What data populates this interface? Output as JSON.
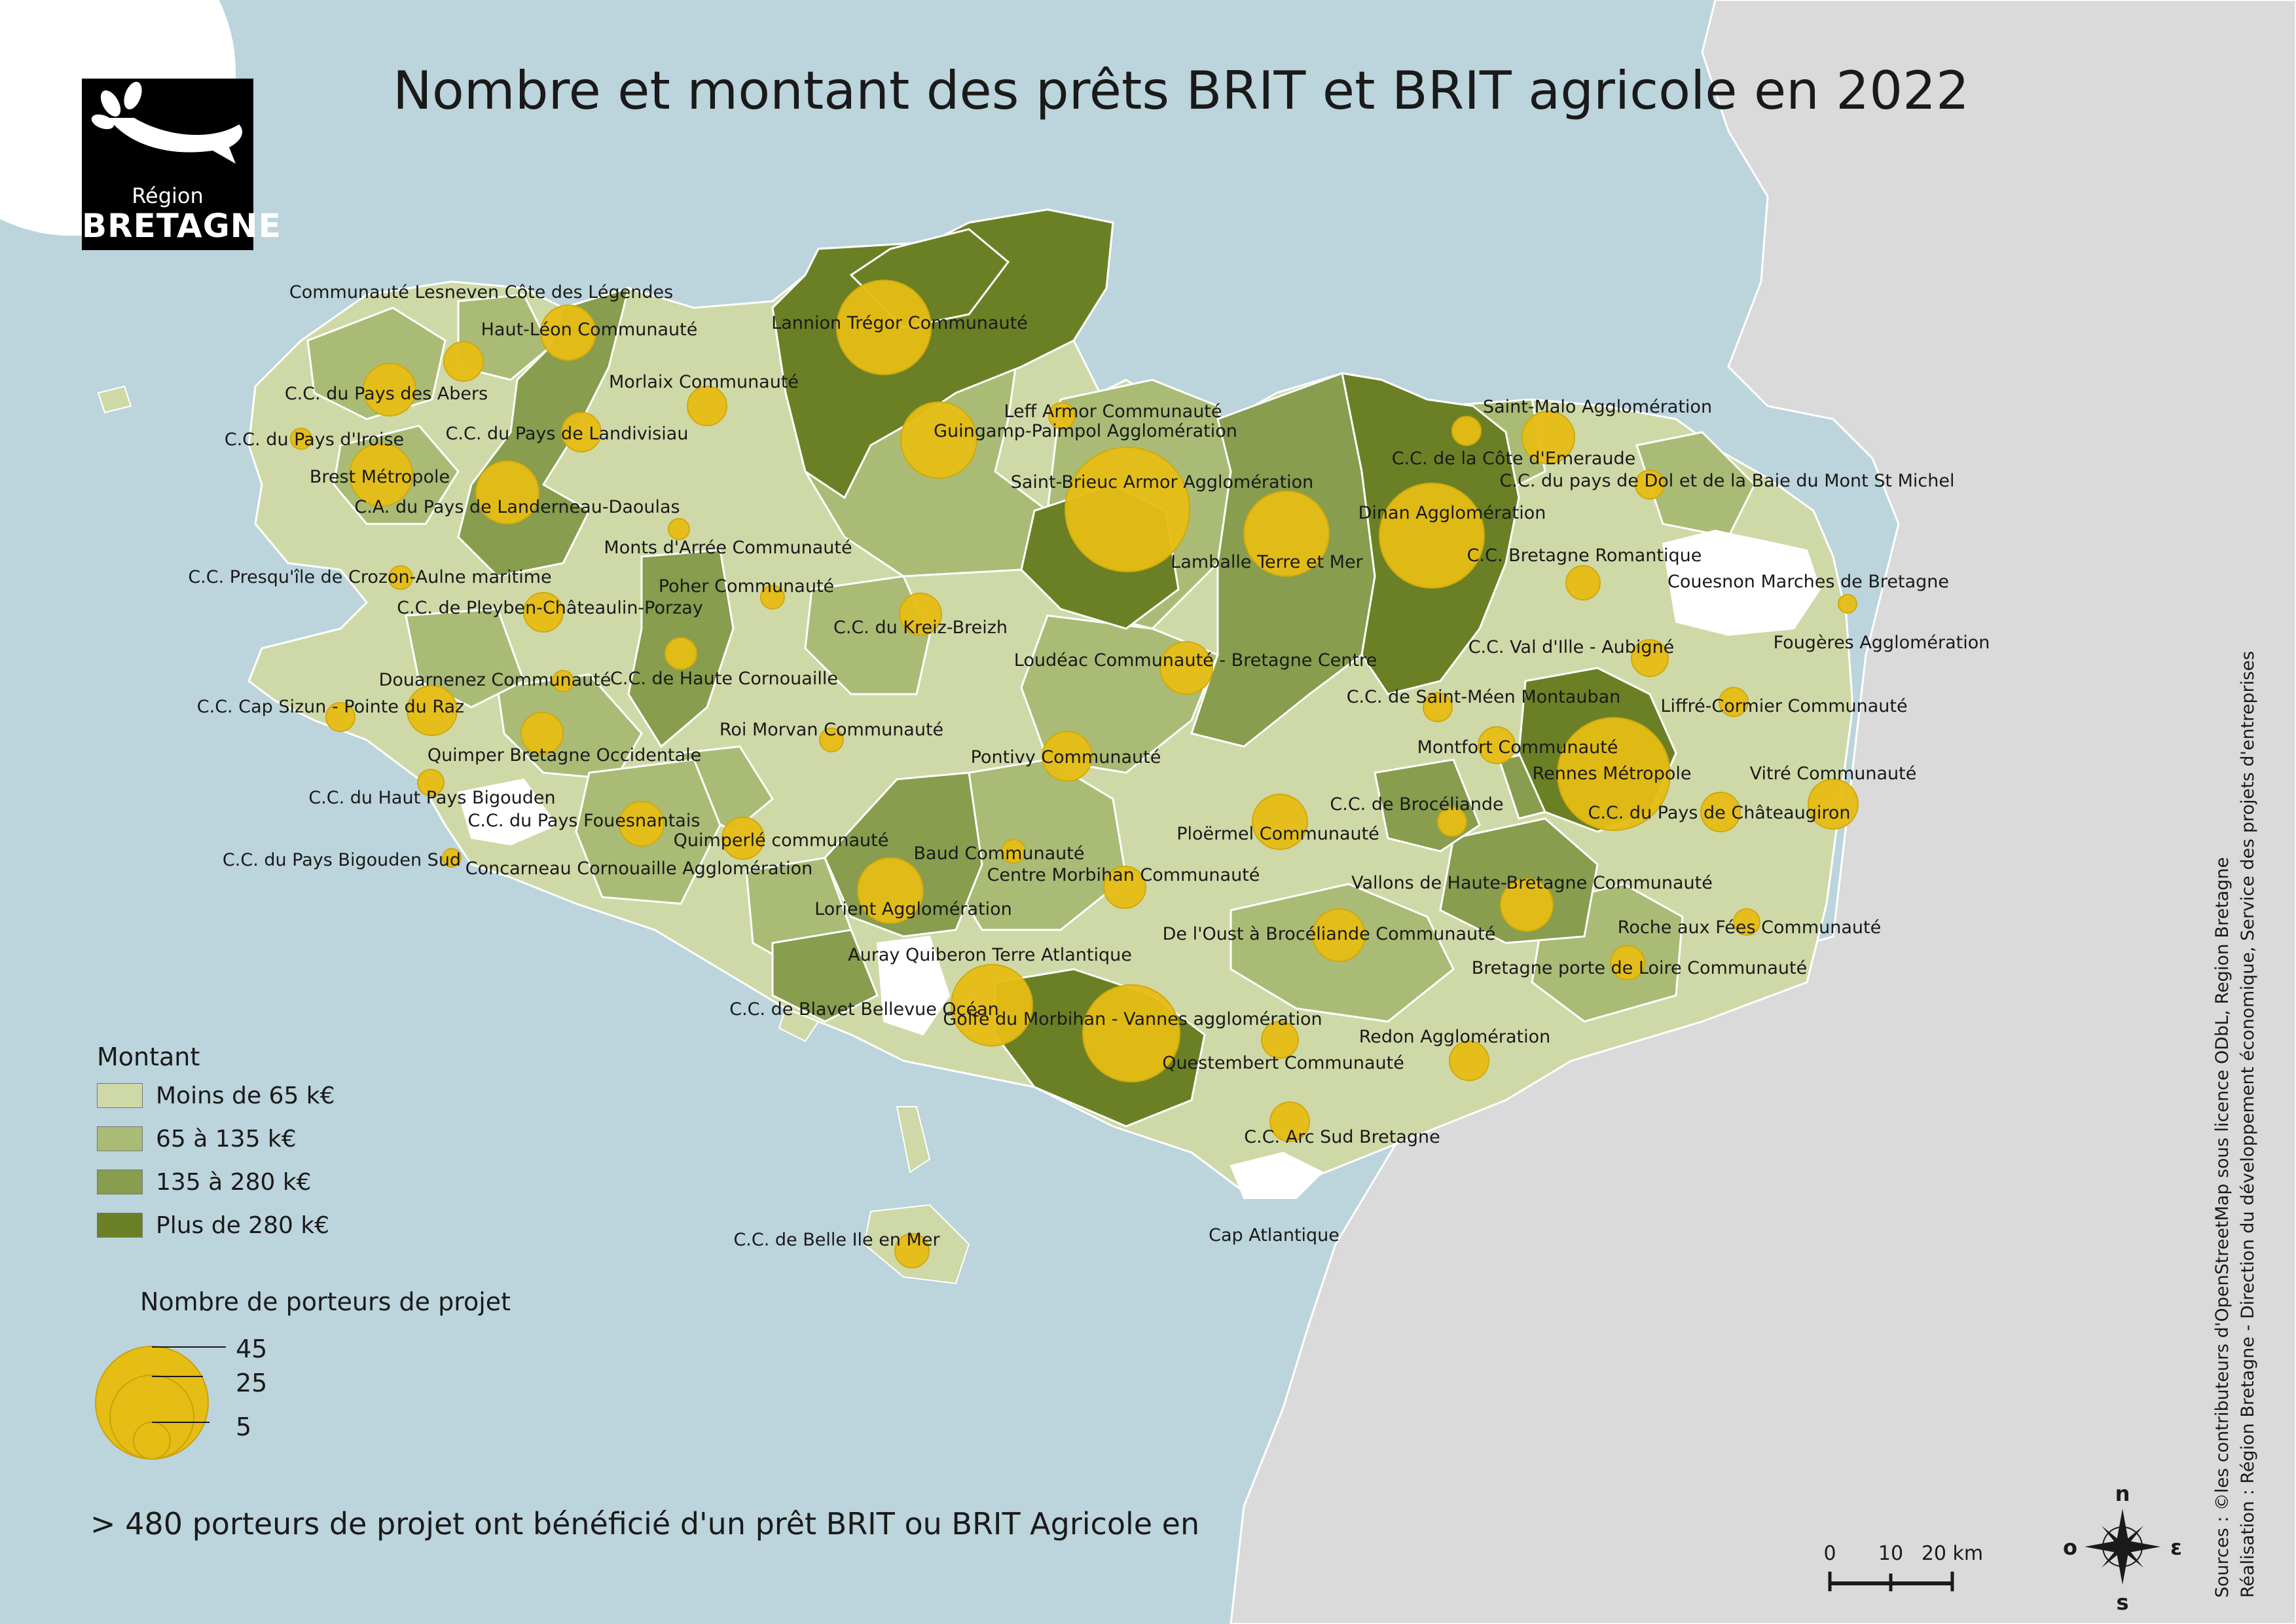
{
  "title": "Nombre et montant des prêts BRIT et BRIT agricole en 2022",
  "logo": {
    "line1": "Région",
    "line2": "BRETAGNE"
  },
  "legend": {
    "amount_title": "Montant",
    "amount_classes": [
      {
        "label": "Moins de 65 k€",
        "color": "#cfd9a7"
      },
      {
        "label": "65 à 135 k€",
        "color": "#aabb75"
      },
      {
        "label": "135 à 280 k€",
        "color": "#889d4d"
      },
      {
        "label": "Plus de 280 k€",
        "color": "#6b8025"
      }
    ],
    "count_title": "Nombre de porteurs de projet",
    "count_values": [
      "45",
      "25",
      "5"
    ]
  },
  "colors": {
    "sea": "#bcd4dc",
    "land_outside": "#dadada",
    "no_data": "#ffffff",
    "circle": "#e6bd14"
  },
  "territories": [
    {
      "name": "Communauté Lesneven Côte des Légendes"
    },
    {
      "name": "Haut-Léon Communauté"
    },
    {
      "name": "Lannion Trégor Communauté"
    },
    {
      "name": "C.C. du Pays des Abers"
    },
    {
      "name": "Morlaix Communauté"
    },
    {
      "name": "Leff Armor Communauté"
    },
    {
      "name": "Guingamp-Paimpol Agglomération"
    },
    {
      "name": "Saint-Malo Agglomération"
    },
    {
      "name": "C.C. du Pays d'Iroise"
    },
    {
      "name": "C.C. du Pays de Landivisiau"
    },
    {
      "name": "Brest Métropole"
    },
    {
      "name": "C.C. de la Côte d'Emeraude"
    },
    {
      "name": "Saint-Brieuc Armor Agglomération"
    },
    {
      "name": "C.C. du pays de Dol et de la Baie du Mont St Michel"
    },
    {
      "name": "C.A. du Pays de Landerneau-Daoulas"
    },
    {
      "name": "Dinan Agglomération"
    },
    {
      "name": "Monts d'Arrée Communauté"
    },
    {
      "name": "Lamballe Terre et Mer"
    },
    {
      "name": "C.C. Bretagne Romantique"
    },
    {
      "name": "C.C. Presqu'île de Crozon-Aulne maritime"
    },
    {
      "name": "Poher Communauté"
    },
    {
      "name": "Couesnon Marches de Bretagne"
    },
    {
      "name": "C.C. de Pleyben-Châteaulin-Porzay"
    },
    {
      "name": "C.C. du Kreiz-Breizh"
    },
    {
      "name": "C.C. Val d'Ille - Aubigné"
    },
    {
      "name": "Fougères Agglomération"
    },
    {
      "name": "Loudéac Communauté - Bretagne Centre"
    },
    {
      "name": "Douarnenez Communauté"
    },
    {
      "name": "C.C. de Haute Cornouaille"
    },
    {
      "name": "C.C. de Saint-Méen Montauban"
    },
    {
      "name": "C.C. Cap Sizun - Pointe du Raz"
    },
    {
      "name": "Liffré-Cormier Communauté"
    },
    {
      "name": "Roi Morvan Communauté"
    },
    {
      "name": "Montfort Communauté"
    },
    {
      "name": "Quimper Bretagne Occidentale"
    },
    {
      "name": "Pontivy Communauté"
    },
    {
      "name": "Rennes Métropole"
    },
    {
      "name": "Vitré Communauté"
    },
    {
      "name": "C.C. du Haut Pays Bigouden"
    },
    {
      "name": "C.C. de Brocéliande"
    },
    {
      "name": "C.C. du Pays de Châteaugiron"
    },
    {
      "name": "C.C. du Pays Fouesnantais"
    },
    {
      "name": "Quimperlé communauté"
    },
    {
      "name": "Ploërmel Communauté"
    },
    {
      "name": "Baud Communauté"
    },
    {
      "name": "C.C. du Pays Bigouden Sud"
    },
    {
      "name": "Concarneau Cornouaille Agglomération"
    },
    {
      "name": "Centre Morbihan Communauté"
    },
    {
      "name": "Vallons de Haute-Bretagne Communauté"
    },
    {
      "name": "Lorient Agglomération"
    },
    {
      "name": "Roche aux Fées Communauté"
    },
    {
      "name": "De l'Oust à Brocéliande Communauté"
    },
    {
      "name": "Auray Quiberon Terre Atlantique"
    },
    {
      "name": "Bretagne porte de Loire Communauté"
    },
    {
      "name": "C.C. de Blavet Bellevue Océan"
    },
    {
      "name": "Golfe du Morbihan - Vannes agglomération"
    },
    {
      "name": "Redon Agglomération"
    },
    {
      "name": "Questembert Communauté"
    },
    {
      "name": "C.C. Arc Sud Bretagne"
    },
    {
      "name": "Cap Atlantique"
    },
    {
      "name": "C.C. de Belle Ile en Mer"
    }
  ],
  "footer": "> 480 porteurs de projet ont bénéficié d'un prêt BRIT ou BRIT Agricole en",
  "scale": {
    "labels": [
      "0",
      "10",
      "20 km"
    ]
  },
  "compass": {
    "n": "n",
    "s": "s",
    "e": "ε",
    "w": "o"
  },
  "sources": {
    "line1": "Sources : ©les contributeurs d'OpenStreetMap sous licence ODbL, Region Bretagne",
    "line2": "Réalisation : Région Bretagne - Direction du développement économique, Service des projets d'entreprises"
  }
}
